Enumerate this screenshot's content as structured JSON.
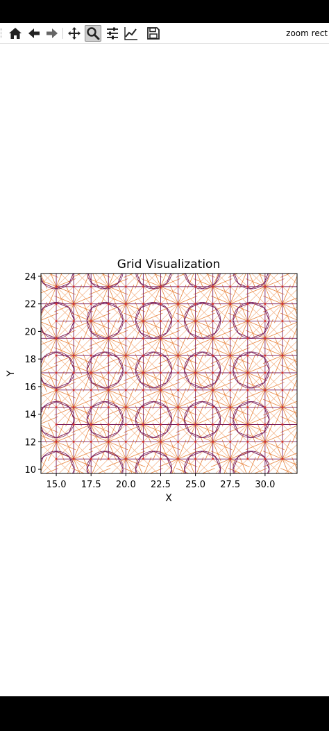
{
  "toolbar": {
    "items": [
      {
        "icon": "home-icon",
        "label": "Home"
      },
      {
        "icon": "back-icon",
        "label": "Back"
      },
      {
        "icon": "forward-icon",
        "label": "Forward"
      },
      {
        "icon": "pan-icon",
        "label": "Pan"
      },
      {
        "icon": "zoom-icon",
        "label": "Zoom",
        "active": true
      },
      {
        "icon": "subplots-icon",
        "label": "Subplots"
      },
      {
        "icon": "customize-icon",
        "label": "Customize"
      },
      {
        "icon": "save-icon",
        "label": "Save"
      }
    ],
    "status_message": "zoom rect"
  },
  "chart_data": {
    "type": "line",
    "title": "Grid Visualization",
    "xlabel": "X",
    "ylabel": "Y",
    "xlim": [
      13.9,
      32.3
    ],
    "ylim": [
      9.7,
      24.2
    ],
    "x_ticks": [
      "15.0",
      "17.5",
      "20.0",
      "22.5",
      "25.0",
      "27.5",
      "30.0"
    ],
    "y_ticks": [
      "10",
      "12",
      "14",
      "16",
      "18",
      "20",
      "22",
      "24"
    ],
    "grid": false,
    "legend": "none",
    "series_colors": {
      "grid_edges": "#7a1f5c",
      "diagonal_edges": "#e8823a",
      "light_edges": "#f4b183",
      "nodes": "#d9302c"
    },
    "description_pattern": "periodic star/rosette lattice"
  }
}
